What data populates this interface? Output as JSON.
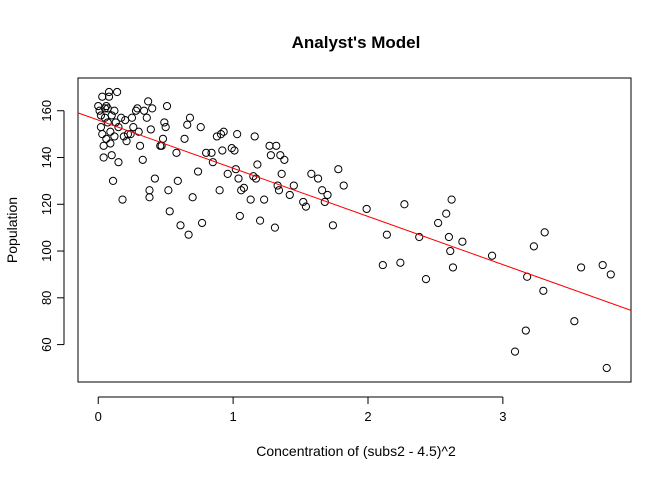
{
  "chart_data": {
    "type": "scatter",
    "title": "Analyst's Model",
    "xlabel": "Concentration of (subs2 - 4.5)^2",
    "ylabel": "Population",
    "xlim": [
      -0.15,
      3.95
    ],
    "ylim": [
      44,
      174
    ],
    "x_ticks": [
      0,
      1,
      2,
      3
    ],
    "y_ticks": [
      60,
      80,
      100,
      120,
      140,
      160
    ],
    "grid": false,
    "colors": {
      "points": "#000000",
      "fit_line": "#ff0000",
      "frame": "#000000"
    },
    "fit_line": {
      "intercept": 156,
      "slope": -20.6,
      "x_from": -0.15,
      "x_to": 3.95
    },
    "points": [
      {
        "x": 0.0,
        "y": 162
      },
      {
        "x": 0.01,
        "y": 160
      },
      {
        "x": 0.02,
        "y": 158
      },
      {
        "x": 0.02,
        "y": 153
      },
      {
        "x": 0.03,
        "y": 166
      },
      {
        "x": 0.03,
        "y": 150
      },
      {
        "x": 0.04,
        "y": 145
      },
      {
        "x": 0.04,
        "y": 140
      },
      {
        "x": 0.05,
        "y": 157
      },
      {
        "x": 0.05,
        "y": 161
      },
      {
        "x": 0.06,
        "y": 162
      },
      {
        "x": 0.06,
        "y": 148
      },
      {
        "x": 0.07,
        "y": 161
      },
      {
        "x": 0.07,
        "y": 155
      },
      {
        "x": 0.08,
        "y": 168
      },
      {
        "x": 0.08,
        "y": 166
      },
      {
        "x": 0.09,
        "y": 151
      },
      {
        "x": 0.09,
        "y": 146
      },
      {
        "x": 0.1,
        "y": 141
      },
      {
        "x": 0.1,
        "y": 158
      },
      {
        "x": 0.11,
        "y": 130
      },
      {
        "x": 0.12,
        "y": 149
      },
      {
        "x": 0.12,
        "y": 160
      },
      {
        "x": 0.13,
        "y": 155
      },
      {
        "x": 0.14,
        "y": 168
      },
      {
        "x": 0.15,
        "y": 138
      },
      {
        "x": 0.15,
        "y": 153
      },
      {
        "x": 0.17,
        "y": 157
      },
      {
        "x": 0.18,
        "y": 122
      },
      {
        "x": 0.19,
        "y": 149
      },
      {
        "x": 0.2,
        "y": 156
      },
      {
        "x": 0.21,
        "y": 147
      },
      {
        "x": 0.22,
        "y": 150
      },
      {
        "x": 0.24,
        "y": 150
      },
      {
        "x": 0.25,
        "y": 157
      },
      {
        "x": 0.26,
        "y": 153
      },
      {
        "x": 0.28,
        "y": 160
      },
      {
        "x": 0.29,
        "y": 161
      },
      {
        "x": 0.3,
        "y": 151
      },
      {
        "x": 0.31,
        "y": 145
      },
      {
        "x": 0.33,
        "y": 139
      },
      {
        "x": 0.34,
        "y": 160
      },
      {
        "x": 0.36,
        "y": 157
      },
      {
        "x": 0.37,
        "y": 164
      },
      {
        "x": 0.38,
        "y": 126
      },
      {
        "x": 0.38,
        "y": 123
      },
      {
        "x": 0.39,
        "y": 152
      },
      {
        "x": 0.4,
        "y": 161
      },
      {
        "x": 0.42,
        "y": 131
      },
      {
        "x": 0.46,
        "y": 145
      },
      {
        "x": 0.47,
        "y": 145
      },
      {
        "x": 0.48,
        "y": 148
      },
      {
        "x": 0.49,
        "y": 155
      },
      {
        "x": 0.5,
        "y": 153
      },
      {
        "x": 0.51,
        "y": 162
      },
      {
        "x": 0.52,
        "y": 126
      },
      {
        "x": 0.53,
        "y": 117
      },
      {
        "x": 0.58,
        "y": 142
      },
      {
        "x": 0.59,
        "y": 130
      },
      {
        "x": 0.61,
        "y": 111
      },
      {
        "x": 0.64,
        "y": 148
      },
      {
        "x": 0.66,
        "y": 154
      },
      {
        "x": 0.67,
        "y": 107
      },
      {
        "x": 0.68,
        "y": 157
      },
      {
        "x": 0.7,
        "y": 123
      },
      {
        "x": 0.74,
        "y": 134
      },
      {
        "x": 0.76,
        "y": 153
      },
      {
        "x": 0.77,
        "y": 112
      },
      {
        "x": 0.8,
        "y": 142
      },
      {
        "x": 0.84,
        "y": 142
      },
      {
        "x": 0.85,
        "y": 138
      },
      {
        "x": 0.88,
        "y": 149
      },
      {
        "x": 0.9,
        "y": 126
      },
      {
        "x": 0.91,
        "y": 150
      },
      {
        "x": 0.92,
        "y": 143
      },
      {
        "x": 0.93,
        "y": 151
      },
      {
        "x": 0.96,
        "y": 133
      },
      {
        "x": 0.99,
        "y": 144
      },
      {
        "x": 1.01,
        "y": 143
      },
      {
        "x": 1.02,
        "y": 135
      },
      {
        "x": 1.03,
        "y": 150
      },
      {
        "x": 1.04,
        "y": 131
      },
      {
        "x": 1.05,
        "y": 115
      },
      {
        "x": 1.06,
        "y": 126
      },
      {
        "x": 1.08,
        "y": 127
      },
      {
        "x": 1.13,
        "y": 122
      },
      {
        "x": 1.15,
        "y": 132
      },
      {
        "x": 1.16,
        "y": 149
      },
      {
        "x": 1.17,
        "y": 131
      },
      {
        "x": 1.18,
        "y": 137
      },
      {
        "x": 1.2,
        "y": 113
      },
      {
        "x": 1.23,
        "y": 122
      },
      {
        "x": 1.27,
        "y": 145
      },
      {
        "x": 1.28,
        "y": 141
      },
      {
        "x": 1.31,
        "y": 110
      },
      {
        "x": 1.32,
        "y": 145
      },
      {
        "x": 1.33,
        "y": 128
      },
      {
        "x": 1.34,
        "y": 126
      },
      {
        "x": 1.35,
        "y": 141
      },
      {
        "x": 1.36,
        "y": 133
      },
      {
        "x": 1.38,
        "y": 139
      },
      {
        "x": 1.42,
        "y": 124
      },
      {
        "x": 1.45,
        "y": 128
      },
      {
        "x": 1.52,
        "y": 121
      },
      {
        "x": 1.54,
        "y": 119
      },
      {
        "x": 1.58,
        "y": 133
      },
      {
        "x": 1.63,
        "y": 131
      },
      {
        "x": 1.66,
        "y": 126
      },
      {
        "x": 1.68,
        "y": 121
      },
      {
        "x": 1.7,
        "y": 124
      },
      {
        "x": 1.74,
        "y": 111
      },
      {
        "x": 1.78,
        "y": 135
      },
      {
        "x": 1.82,
        "y": 128
      },
      {
        "x": 1.99,
        "y": 118
      },
      {
        "x": 2.11,
        "y": 94
      },
      {
        "x": 2.14,
        "y": 107
      },
      {
        "x": 2.24,
        "y": 95
      },
      {
        "x": 2.27,
        "y": 120
      },
      {
        "x": 2.38,
        "y": 106
      },
      {
        "x": 2.43,
        "y": 88
      },
      {
        "x": 2.52,
        "y": 112
      },
      {
        "x": 2.58,
        "y": 116
      },
      {
        "x": 2.6,
        "y": 106
      },
      {
        "x": 2.61,
        "y": 100
      },
      {
        "x": 2.62,
        "y": 122
      },
      {
        "x": 2.63,
        "y": 93
      },
      {
        "x": 2.7,
        "y": 104
      },
      {
        "x": 2.92,
        "y": 98
      },
      {
        "x": 3.09,
        "y": 57
      },
      {
        "x": 3.17,
        "y": 66
      },
      {
        "x": 3.18,
        "y": 89
      },
      {
        "x": 3.23,
        "y": 102
      },
      {
        "x": 3.3,
        "y": 83
      },
      {
        "x": 3.31,
        "y": 108
      },
      {
        "x": 3.53,
        "y": 70
      },
      {
        "x": 3.58,
        "y": 93
      },
      {
        "x": 3.74,
        "y": 94
      },
      {
        "x": 3.77,
        "y": 50
      },
      {
        "x": 3.8,
        "y": 90
      }
    ]
  }
}
